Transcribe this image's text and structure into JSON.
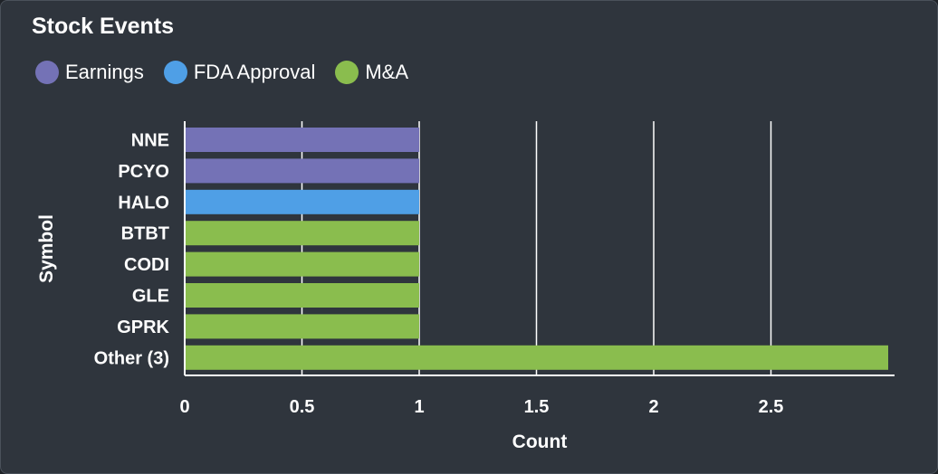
{
  "panel": {
    "title": "Stock Events"
  },
  "legend": [
    {
      "label": "Earnings",
      "color": "#7472b6"
    },
    {
      "label": "FDA Approval",
      "color": "#4f9fe6"
    },
    {
      "label": "M&A",
      "color": "#8abd4e"
    }
  ],
  "chart_data": {
    "type": "bar",
    "orientation": "horizontal",
    "title": "Stock Events",
    "xlabel": "Count",
    "ylabel": "Symbol",
    "xlim": [
      0,
      3
    ],
    "xticks": [
      "0",
      "0.5",
      "1",
      "1.5",
      "2",
      "2.5"
    ],
    "grid": true,
    "legend_position": "top-left",
    "categories": [
      "NNE",
      "PCYO",
      "HALO",
      "BTBT",
      "CODI",
      "GLE",
      "GPRK",
      "Other (3)"
    ],
    "values": [
      1,
      1,
      1,
      1,
      1,
      1,
      1,
      3
    ],
    "bar_series": [
      "Earnings",
      "Earnings",
      "FDA Approval",
      "M&A",
      "M&A",
      "M&A",
      "M&A",
      "M&A"
    ]
  }
}
